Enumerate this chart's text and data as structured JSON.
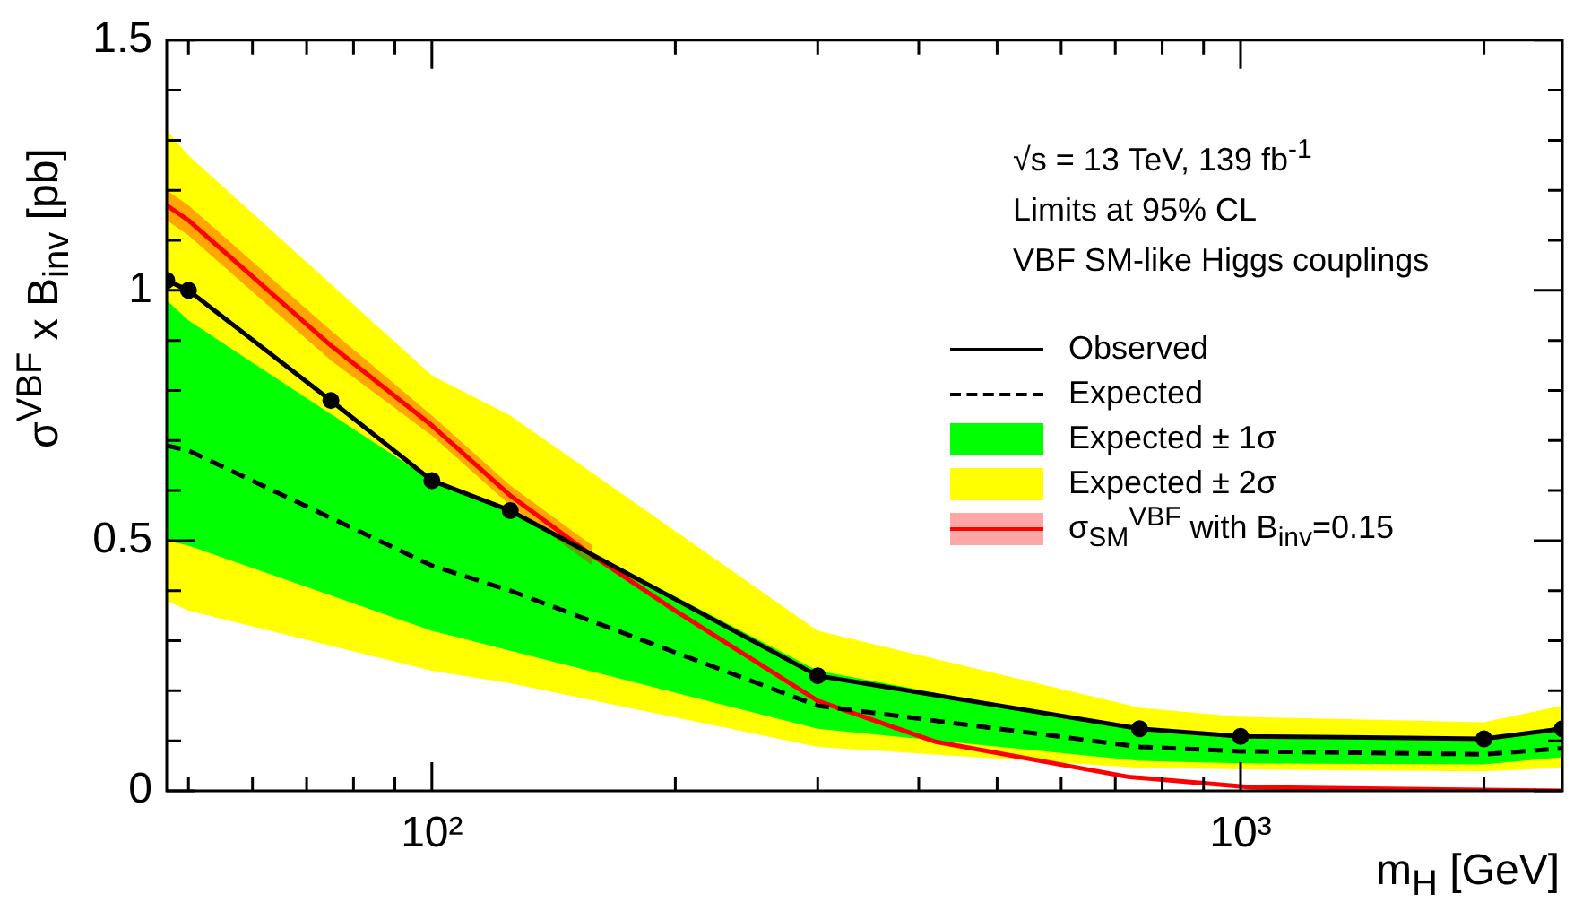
{
  "chart_data": {
    "type": "line",
    "xlabel": "m$_{H}$ [GeV]",
    "ylabel": "σ$^{VBF}$ x  B$_{inv}$ [pb]",
    "log": "x",
    "xlim": [
      47,
      2500
    ],
    "ylim": [
      0,
      1.5
    ],
    "xticks": [
      {
        "value": 50,
        "label": null
      },
      {
        "value": 60,
        "label": null
      },
      {
        "value": 70,
        "label": null
      },
      {
        "value": 80,
        "label": null
      },
      {
        "value": 90,
        "label": null
      },
      {
        "value": 100,
        "label": "10²"
      },
      {
        "value": 200,
        "label": null
      },
      {
        "value": 300,
        "label": null
      },
      {
        "value": 400,
        "label": null
      },
      {
        "value": 500,
        "label": null
      },
      {
        "value": 600,
        "label": null
      },
      {
        "value": 700,
        "label": null
      },
      {
        "value": 800,
        "label": null
      },
      {
        "value": 900,
        "label": null
      },
      {
        "value": 1000,
        "label": "10³"
      },
      {
        "value": 2000,
        "label": null
      }
    ],
    "yticks": [
      0,
      {
        "value": 0.1,
        "label": null
      },
      {
        "value": 0.2,
        "label": null
      },
      {
        "value": 0.3,
        "label": null
      },
      {
        "value": 0.4,
        "label": null
      },
      0.5,
      {
        "value": 0.6,
        "label": null
      },
      {
        "value": 0.7,
        "label": null
      },
      {
        "value": 0.8,
        "label": null
      },
      {
        "value": 0.9,
        "label": null
      },
      1,
      {
        "value": 1.1,
        "label": null
      },
      {
        "value": 1.2,
        "label": null
      },
      {
        "value": 1.3,
        "label": null
      },
      {
        "value": 1.4,
        "label": null
      },
      1.5
    ],
    "legend": "right",
    "annotations": [
      "√s = 13 TeV, 139 fb$^{-1}$",
      "Limits at 95% CL",
      "VBF SM-like Higgs couplings"
    ],
    "series": [
      {
        "name": "Observed",
        "color": "#000000",
        "marker": "circle",
        "line_style": "solid",
        "x": [
          47,
          50,
          75,
          100,
          125,
          300,
          750,
          1000,
          2000,
          2500
        ],
        "values": [
          1.02,
          1.0,
          0.78,
          0.62,
          0.56,
          0.23,
          0.124,
          0.109,
          0.104,
          0.124
        ]
      },
      {
        "name": "Expected",
        "type": "line",
        "color": "#000000",
        "marker": "none",
        "line_style": "dashed",
        "x": [
          47,
          50,
          100,
          125,
          300,
          750,
          1000,
          2000,
          2500
        ],
        "values": [
          0.69,
          0.68,
          0.45,
          0.4,
          0.17,
          0.088,
          0.079,
          0.073,
          0.085
        ]
      },
      {
        "name": "Expected ± 1σ",
        "type": "area",
        "color": "#00ff00",
        "x": [
          47,
          50,
          100,
          125,
          300,
          750,
          1000,
          2000,
          2500
        ],
        "values": [
          null,
          null,
          null,
          null,
          null,
          null,
          null,
          null,
          null
        ],
        "upper": [
          0.98,
          0.94,
          0.62,
          0.56,
          0.24,
          0.12,
          0.105,
          0.1,
          0.13
        ],
        "lower": [
          0.5,
          0.49,
          0.32,
          0.28,
          0.124,
          0.06,
          0.055,
          0.053,
          0.067
        ]
      },
      {
        "name": "Expected ± 2σ",
        "type": "area",
        "color": "#ffff00",
        "x": [
          47,
          50,
          100,
          125,
          300,
          750,
          1000,
          2000,
          2500
        ],
        "values": [
          null,
          null,
          null,
          null,
          null,
          null,
          null,
          null,
          null
        ],
        "upper": [
          1.32,
          1.27,
          0.83,
          0.75,
          0.32,
          0.166,
          0.148,
          0.137,
          0.17
        ],
        "lower": [
          0.38,
          0.36,
          0.24,
          0.215,
          0.088,
          0.046,
          0.043,
          0.039,
          0.046
        ]
      },
      {
        "name": "σ$_{SM}$$^{VBF}$ with B$_{inv}$=0.15",
        "type": "line",
        "color": "#ff0000",
        "marker": "none",
        "line_style": "solid",
        "x": [
          47,
          50,
          75,
          100,
          125,
          158,
          200,
          300,
          420,
          726,
          1030,
          2500
        ],
        "values": [
          1.17,
          1.14,
          0.89,
          0.73,
          0.59,
          0.47,
          0.36,
          0.18,
          0.098,
          0.028,
          0.007,
          0.0
        ],
        "lower": [
          1.14,
          1.11,
          0.86,
          0.71,
          0.57,
          0.45,
          null,
          null,
          null,
          null,
          null,
          null
        ],
        "upper": [
          1.2,
          1.17,
          0.92,
          0.75,
          0.61,
          0.49,
          null,
          null,
          null,
          null,
          null,
          null
        ]
      }
    ]
  }
}
